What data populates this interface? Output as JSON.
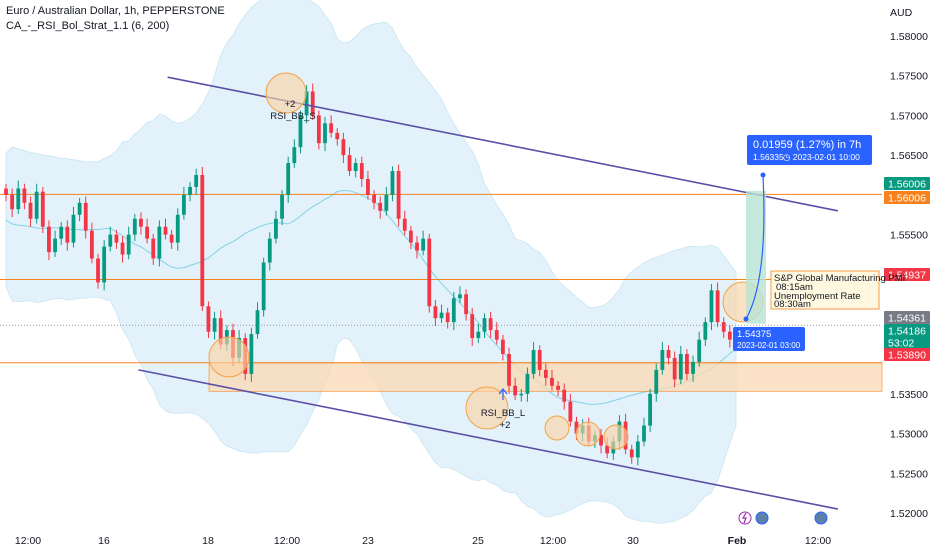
{
  "header": {
    "symbol_line": "Euro / Australian Dollar, 1h, PEPPERSTONE",
    "indicator_line": "CA_-_RSI_Bol_Strat_1.1 (6, 200)",
    "currency": "AUD"
  },
  "chart_data": {
    "type": "candlestick",
    "y_axis": {
      "ticks": [
        "1.58000",
        "1.57500",
        "1.57000",
        "1.56500",
        "1.56000",
        "1.55500",
        "1.55000",
        "1.54500",
        "1.54000",
        "1.53500",
        "1.53000",
        "1.52500",
        "1.52000"
      ],
      "range": [
        1.5185,
        1.5845
      ]
    },
    "x_axis": {
      "ticks": [
        "12:00",
        "16",
        "18",
        "12:00",
        "23",
        "25",
        "12:00",
        "30",
        "Feb",
        "12:00"
      ]
    },
    "price_tags": [
      {
        "value": "1.56006",
        "color": "#089981"
      },
      {
        "value": "1.56006",
        "color": "#f7821b"
      },
      {
        "value": "1.54937",
        "color": "#f23645"
      },
      {
        "value": "1.54361",
        "color": "#787b86"
      },
      {
        "value": "1.54186",
        "color": "#089981"
      },
      {
        "value": "53:02",
        "color": "#089981"
      },
      {
        "value": "1.53890",
        "color": "#f23645"
      }
    ],
    "horizontal_levels": [
      1.56006,
      1.54937,
      1.5389
    ],
    "demand_zone": [
      1.5353,
      1.5389
    ],
    "channel": {
      "upper": [
        [
          0.19,
          1.5748
        ],
        [
          0.95,
          1.558
        ]
      ],
      "lower": [
        [
          0.157,
          1.538
        ],
        [
          0.95,
          1.5205
        ]
      ]
    },
    "signals": [
      {
        "label": "RSI_BB_S",
        "count": "+2"
      },
      {
        "label": "RSI_BB_L",
        "count": "+2"
      }
    ],
    "measure": {
      "change": "0.01959 (1.27%) in 7h",
      "target": "1.56335",
      "target_time": "2023-02-01  10:00",
      "entry": "1.54375",
      "entry_time": "2023-02-01 03:00"
    },
    "events": {
      "line1": "S&P Global Manufacturing PMI",
      "line2": "08:15am",
      "line3": "Unemployment Rate",
      "line4": "08:30am"
    },
    "colors": {
      "up": "#089981",
      "down": "#f23645",
      "channel": "#5b4fa6",
      "level": "#f7821b",
      "band_fill": "#dff0fa",
      "basis": "#7fd3e6"
    },
    "close_series": [
      1.56,
      1.5582,
      1.5608,
      1.559,
      1.557,
      1.5604,
      1.556,
      1.5528,
      1.5545,
      1.556,
      1.554,
      1.5575,
      1.559,
      1.5555,
      1.552,
      1.549,
      1.5535,
      1.555,
      1.554,
      1.5525,
      1.555,
      1.557,
      1.556,
      1.5545,
      1.552,
      1.556,
      1.555,
      1.554,
      1.5575,
      1.56,
      1.561,
      1.5625,
      1.546,
      1.5428,
      1.5445,
      1.5412,
      1.543,
      1.5395,
      1.542,
      1.5375,
      1.5425,
      1.5455,
      1.5515,
      1.5545,
      1.557,
      1.56,
      1.564,
      1.566,
      1.57,
      1.573,
      1.57,
      1.5665,
      1.569,
      1.5678,
      1.567,
      1.565,
      1.563,
      1.564,
      1.562,
      1.56,
      1.559,
      1.558,
      1.56,
      1.563,
      1.557,
      1.5555,
      1.554,
      1.553,
      1.5545,
      1.546,
      1.5445,
      1.5452,
      1.544,
      1.547,
      1.5475,
      1.545,
      1.542,
      1.5428,
      1.5445,
      1.543,
      1.5418,
      1.54,
      1.536,
      1.5348,
      1.535,
      1.5375,
      1.5405,
      1.538,
      1.537,
      1.536,
      1.5355,
      1.534,
      1.5315,
      1.53,
      1.531,
      1.529,
      1.5298,
      1.5285,
      1.5275,
      1.529,
      1.5315,
      1.528,
      1.527,
      1.529,
      1.531,
      1.535,
      1.538,
      1.5405,
      1.5395,
      1.5368,
      1.54,
      1.5375,
      1.539,
      1.5418,
      1.544,
      1.548,
      1.544,
      1.5428,
      1.5418,
      1.541
    ]
  }
}
